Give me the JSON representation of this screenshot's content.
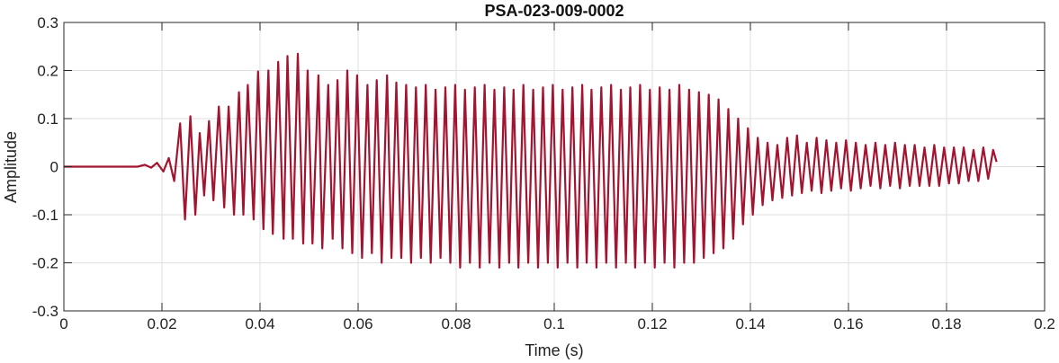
{
  "chart_data": {
    "type": "line",
    "title": "PSA-023-009-0002",
    "xlabel": "Time (s)",
    "ylabel": "Amplitude",
    "xlim": [
      0,
      0.2
    ],
    "ylim": [
      -0.3,
      0.3
    ],
    "xticks": [
      0,
      0.02,
      0.04,
      0.06,
      0.08,
      0.1,
      0.12,
      0.14,
      0.16,
      0.18,
      0.2
    ],
    "xtick_labels": [
      "0",
      "0.02",
      "0.04",
      "0.06",
      "0.08",
      "0.1",
      "0.12",
      "0.14",
      "0.16",
      "0.18",
      "0.2"
    ],
    "yticks": [
      -0.3,
      -0.2,
      -0.1,
      0,
      0.1,
      0.2,
      0.3
    ],
    "ytick_labels": [
      "-0.3",
      "-0.2",
      "-0.1",
      "0",
      "0.1",
      "0.2",
      "0.3"
    ],
    "grid": true,
    "line_color": "#a2142f",
    "series": [
      {
        "x": [
          0,
          0.015,
          0.0165,
          0.0178,
          0.019,
          0.0203,
          0.0214,
          0.0225,
          0.0237,
          0.0247,
          0.0258,
          0.0268,
          0.0277,
          0.0286,
          0.0296,
          0.0305,
          0.0316,
          0.0327,
          0.0336,
          0.0347,
          0.0357,
          0.0366,
          0.0375,
          0.0387,
          0.0396,
          0.0407,
          0.0417,
          0.0426,
          0.0437,
          0.0448,
          0.0456,
          0.0467,
          0.0477,
          0.0488,
          0.0497,
          0.0507,
          0.0519,
          0.0527,
          0.0539,
          0.0548,
          0.0558,
          0.0568,
          0.0578,
          0.0588,
          0.0598,
          0.0608,
          0.0619,
          0.0628,
          0.0638,
          0.0648,
          0.0659,
          0.0668,
          0.0678,
          0.0688,
          0.0698,
          0.0708,
          0.0718,
          0.0728,
          0.0738,
          0.0748,
          0.0758,
          0.0768,
          0.0778,
          0.0788,
          0.0798,
          0.0808,
          0.0818,
          0.0828,
          0.0838,
          0.0848,
          0.0858,
          0.0868,
          0.0878,
          0.0888,
          0.0898,
          0.0908,
          0.0917,
          0.0927,
          0.0937,
          0.0947,
          0.0957,
          0.0967,
          0.0977,
          0.0987,
          0.0997,
          0.1007,
          0.1017,
          0.1027,
          0.1037,
          0.1047,
          0.1057,
          0.1066,
          0.1076,
          0.1086,
          0.1096,
          0.1106,
          0.1116,
          0.1126,
          0.1136,
          0.1146,
          0.1155,
          0.1165,
          0.1175,
          0.1185,
          0.1195,
          0.1205,
          0.1215,
          0.1225,
          0.1235,
          0.1245,
          0.1255,
          0.1265,
          0.1275,
          0.1285,
          0.1295,
          0.1305,
          0.1315,
          0.1325,
          0.1335,
          0.1345,
          0.1355,
          0.1365,
          0.1375,
          0.1385,
          0.1395,
          0.1405,
          0.1415,
          0.1425,
          0.1435,
          0.1445,
          0.1455,
          0.1465,
          0.1475,
          0.1485,
          0.1495,
          0.1505,
          0.1515,
          0.1525,
          0.1535,
          0.1545,
          0.1555,
          0.1565,
          0.1575,
          0.1585,
          0.1595,
          0.1605,
          0.1615,
          0.1625,
          0.1635,
          0.1645,
          0.1655,
          0.1665,
          0.1675,
          0.1685,
          0.1695,
          0.1705,
          0.1715,
          0.1725,
          0.1735,
          0.1745,
          0.1755,
          0.1765,
          0.1775,
          0.1785,
          0.1795,
          0.1805,
          0.1815,
          0.1825,
          0.1835,
          0.1845,
          0.1855,
          0.1865,
          0.1875,
          0.1885,
          0.1895,
          0.1902
        ],
        "y": [
          0,
          0,
          0.004,
          -0.002,
          0.008,
          -0.01,
          0.018,
          -0.03,
          0.09,
          -0.11,
          0.105,
          -0.1,
          0.07,
          -0.06,
          0.095,
          -0.07,
          0.125,
          -0.085,
          0.125,
          -0.1,
          0.155,
          -0.1,
          0.17,
          -0.11,
          0.198,
          -0.13,
          0.2,
          -0.14,
          0.218,
          -0.15,
          0.23,
          -0.15,
          0.235,
          -0.16,
          0.2,
          -0.16,
          0.19,
          -0.17,
          0.17,
          -0.15,
          0.18,
          -0.17,
          0.2,
          -0.18,
          0.19,
          -0.19,
          0.17,
          -0.18,
          0.18,
          -0.2,
          0.19,
          -0.19,
          0.175,
          -0.19,
          0.17,
          -0.2,
          0.165,
          -0.19,
          0.17,
          -0.2,
          0.16,
          -0.19,
          0.165,
          -0.2,
          0.17,
          -0.21,
          0.16,
          -0.2,
          0.165,
          -0.21,
          0.17,
          -0.2,
          0.16,
          -0.21,
          0.165,
          -0.2,
          0.16,
          -0.21,
          0.17,
          -0.2,
          0.16,
          -0.21,
          0.165,
          -0.2,
          0.17,
          -0.21,
          0.16,
          -0.2,
          0.165,
          -0.21,
          0.17,
          -0.2,
          0.16,
          -0.21,
          0.165,
          -0.2,
          0.17,
          -0.21,
          0.16,
          -0.2,
          0.165,
          -0.21,
          0.17,
          -0.2,
          0.16,
          -0.21,
          0.165,
          -0.2,
          0.16,
          -0.21,
          0.17,
          -0.2,
          0.16,
          -0.2,
          0.155,
          -0.19,
          0.15,
          -0.18,
          0.14,
          -0.17,
          0.12,
          -0.15,
          0.1,
          -0.12,
          0.08,
          -0.1,
          0.06,
          -0.08,
          0.05,
          -0.07,
          0.045,
          -0.065,
          0.06,
          -0.06,
          0.065,
          -0.055,
          0.05,
          -0.05,
          0.06,
          -0.055,
          0.055,
          -0.05,
          0.05,
          -0.045,
          0.055,
          -0.05,
          0.05,
          -0.045,
          0.045,
          -0.04,
          0.05,
          -0.045,
          0.045,
          -0.04,
          0.05,
          -0.045,
          0.045,
          -0.04,
          0.045,
          -0.04,
          0.04,
          -0.04,
          0.045,
          -0.04,
          0.04,
          -0.035,
          0.04,
          -0.035,
          0.04,
          -0.03,
          0.035,
          -0.03,
          0.04,
          -0.025,
          0.035,
          0.01
        ]
      }
    ]
  }
}
